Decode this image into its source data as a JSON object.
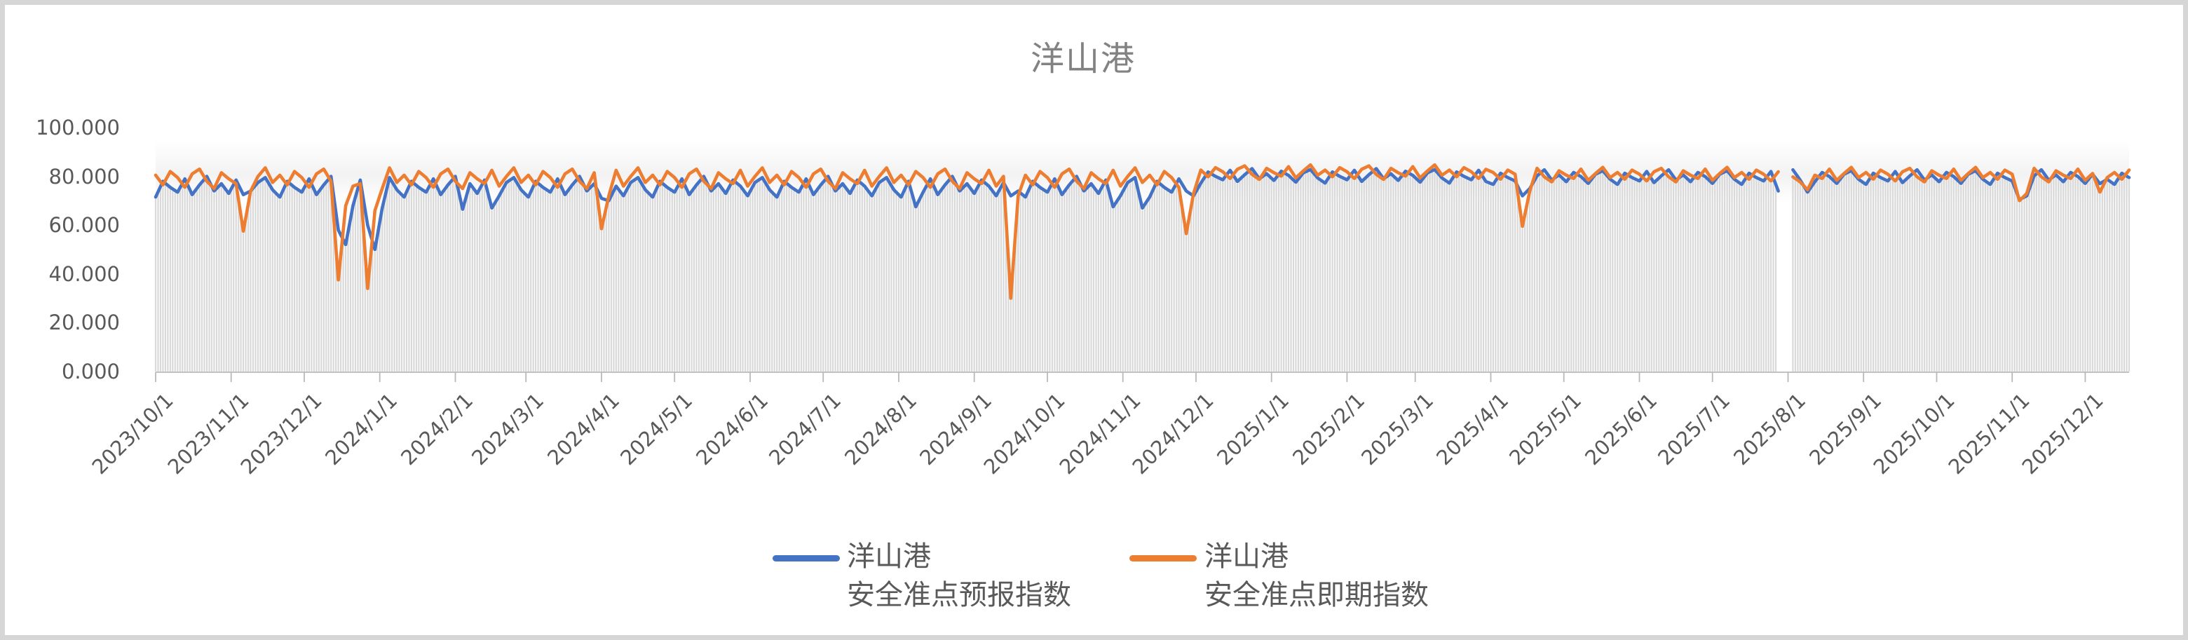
{
  "title": {
    "text": "洋山港",
    "color": "#828282"
  },
  "colors": {
    "series_forecast_blue": "#4472C4",
    "series_spot_orange": "#ED7D31",
    "background_bars_gray": "#d9d9d9",
    "axis_gray": "#b9b9b9",
    "label_gray": "#595959",
    "frame_gray": "#d6d6d6"
  },
  "y_axis": {
    "tick_labels": [
      "100.000",
      "80.000",
      "60.000",
      "40.000",
      "20.000",
      "0.000"
    ],
    "tick_values": [
      100,
      80,
      60,
      40,
      20,
      0
    ]
  },
  "legend": {
    "items": [
      {
        "line1": "洋山港",
        "line2": "安全准点预报指数",
        "color": "#4472C4"
      },
      {
        "line1": "洋山港",
        "line2": "安全准点即期指数",
        "color": "#ED7D31"
      }
    ]
  },
  "chart_data": {
    "type": "line",
    "title": "洋山港",
    "xlabel": "",
    "ylabel": "",
    "ylim": [
      0,
      100
    ],
    "y_ticks": [
      0,
      20,
      40,
      60,
      80,
      100
    ],
    "grid": "off",
    "legend_position": "bottom",
    "x_start": "2023/10/1",
    "x_end": "2025/12/19",
    "x_step_days": 3,
    "total_days": 810,
    "data_gap_at": "2025/8/1",
    "background_bars_color": "#d9d9d9",
    "x_tick_labels": [
      "2023/10/1",
      "2023/11/1",
      "2023/12/1",
      "2024/1/1",
      "2024/2/1",
      "2024/3/1",
      "2024/4/1",
      "2024/5/1",
      "2024/6/1",
      "2024/7/1",
      "2024/8/1",
      "2024/9/1",
      "2024/10/1",
      "2024/11/1",
      "2024/12/1",
      "2025/1/1",
      "2025/2/1",
      "2025/3/1",
      "2025/4/1",
      "2025/5/1",
      "2025/6/1",
      "2025/7/1",
      "2025/8/1",
      "2025/9/1",
      "2025/10/1",
      "2025/11/1",
      "2025/12/1"
    ],
    "x_tick_day_offsets": [
      0,
      31,
      61,
      92,
      123,
      152,
      183,
      213,
      244,
      274,
      305,
      336,
      366,
      397,
      427,
      458,
      489,
      517,
      548,
      578,
      609,
      639,
      670,
      701,
      731,
      762,
      792
    ],
    "notable_events": [
      {
        "date": "2023/11/6",
        "series": "即期",
        "value": 57.5
      },
      {
        "date": "2023/12/15",
        "series": "即期",
        "value": 37.5
      },
      {
        "date": "2023/12/28",
        "series": "即期",
        "value": 34
      },
      {
        "date": "2024/4/1",
        "series": "即期",
        "value": 58.5
      },
      {
        "date": "2024/9/16",
        "series": "即期",
        "value": 30
      },
      {
        "date": "2024/11/27",
        "series": "即期",
        "value": 56.5
      },
      {
        "date": "2025/4/14",
        "series": "即期",
        "value": 59.5
      },
      {
        "date": "2025/11/4",
        "series": "both",
        "value": 70
      }
    ],
    "series": [
      {
        "name": "洋山港安全准点预报指数",
        "color": "#4472C4",
        "values": [
          71.5,
          78,
          75.5,
          73.5,
          79,
          72.5,
          76.5,
          80,
          74,
          77,
          73,
          78.5,
          72.5,
          74,
          77.5,
          79.5,
          74.5,
          71.5,
          78,
          75.5,
          73.5,
          79,
          72.5,
          76.5,
          80,
          58,
          52,
          68,
          78.5,
          60,
          50,
          67,
          79.5,
          74.5,
          71.5,
          78,
          75.5,
          73.5,
          79,
          72.5,
          76.5,
          80,
          66.5,
          77,
          73,
          78.5,
          67,
          72,
          77.5,
          79.5,
          74.5,
          71.5,
          78,
          75.5,
          73.5,
          79,
          72.5,
          76.5,
          80,
          74,
          77,
          71,
          70,
          76,
          72,
          77.5,
          79.5,
          74.5,
          71.5,
          78,
          75.5,
          73.5,
          79,
          72.5,
          76.5,
          80,
          74,
          77,
          73,
          78.5,
          76,
          72,
          77.5,
          79.5,
          74.5,
          71.5,
          78,
          75.5,
          73.5,
          79,
          72.5,
          76.5,
          80,
          74,
          77,
          73,
          78.5,
          76,
          72,
          77.5,
          79.5,
          74.5,
          71.5,
          78,
          67.5,
          73.5,
          79,
          72.5,
          76.5,
          80,
          74,
          77,
          73,
          78.5,
          76,
          72,
          77.5,
          72,
          74,
          71.5,
          78,
          75.5,
          73.5,
          79,
          72.5,
          76.5,
          80,
          74,
          77,
          73,
          78.5,
          67.5,
          72,
          77.5,
          79.5,
          67,
          71.5,
          78,
          75.5,
          73.5,
          79,
          74,
          72,
          77.2,
          81.8,
          80,
          78.6,
          82.5,
          77.9,
          80.7,
          83.2,
          79,
          81.1,
          78.3,
          82.1,
          80.4,
          77.6,
          81.4,
          82.8,
          79.3,
          77.2,
          81.8,
          80,
          78.6,
          82.5,
          77.9,
          80.7,
          83.2,
          79,
          81.1,
          78.3,
          82.1,
          80.4,
          77.6,
          81.4,
          82.8,
          79.3,
          77.2,
          81.8,
          80,
          78.6,
          82.5,
          77.9,
          76.7,
          81.3,
          79.5,
          78.1,
          72,
          75,
          80.2,
          82.7,
          78.5,
          80.6,
          77.8,
          81.6,
          79.9,
          77.1,
          80.9,
          82.3,
          78.8,
          76.7,
          81.3,
          79.5,
          78.1,
          82,
          77.4,
          80.2,
          82.7,
          78.5,
          80.6,
          77.8,
          81.6,
          79.9,
          77.1,
          80.9,
          82.3,
          78.8,
          76.7,
          81.3,
          79.5,
          78.1,
          82,
          74,
          null,
          82.7,
          78.5,
          73.5,
          77.8,
          81.6,
          79.9,
          77.1,
          80.9,
          82.3,
          78.8,
          76.7,
          81.3,
          79.5,
          78.1,
          82,
          77.4,
          80.2,
          82.7,
          78.5,
          80.6,
          77.8,
          81.6,
          79.9,
          77.1,
          80.9,
          82.3,
          78.8,
          76.7,
          81.3,
          79.5,
          78.1,
          70.5,
          72,
          80.2,
          82.7,
          78.5,
          80.6,
          77.8,
          81.6,
          79.9,
          77.1,
          80.9,
          77,
          78.8,
          76.7,
          81.3,
          79.5
        ]
      },
      {
        "name": "洋山港安全准点即期指数",
        "color": "#ED7D31",
        "values": [
          80.5,
          76.5,
          82,
          79.5,
          75.5,
          81,
          83,
          78,
          75,
          81.5,
          79,
          77,
          57.5,
          74,
          80,
          83.5,
          77.5,
          80.5,
          76.5,
          82,
          79.5,
          75.5,
          81,
          83,
          78,
          37.5,
          68,
          76,
          77,
          34,
          66,
          75,
          83.5,
          77.5,
          80.5,
          76.5,
          82,
          79.5,
          75.5,
          81,
          83,
          78,
          75,
          81.5,
          79,
          77,
          82.5,
          76,
          80,
          83.5,
          77.5,
          80.5,
          76.5,
          82,
          79.5,
          75.5,
          81,
          83,
          78,
          75,
          81.5,
          58.5,
          72,
          82.5,
          76,
          80,
          83.5,
          77.5,
          80.5,
          76.5,
          82,
          79.5,
          75.5,
          81,
          83,
          78,
          75,
          81.5,
          79,
          77,
          82.5,
          76,
          80,
          83.5,
          77.5,
          80.5,
          76.5,
          82,
          79.5,
          75.5,
          81,
          83,
          78,
          75,
          81.5,
          79,
          77,
          82.5,
          76,
          80,
          83.5,
          77.5,
          80.5,
          76.5,
          82,
          79.5,
          75.5,
          81,
          83,
          78,
          75,
          81.5,
          79,
          77,
          82.5,
          76,
          80,
          30,
          72,
          80.5,
          76.5,
          82,
          79.5,
          75.5,
          81,
          83,
          78,
          75,
          81.5,
          79,
          77,
          82.5,
          76,
          80,
          83.5,
          77.5,
          80.5,
          76.5,
          82,
          79.5,
          75.5,
          56.5,
          73,
          82.6,
          79.8,
          83.6,
          81.9,
          79.1,
          82.9,
          84.3,
          80.8,
          78.7,
          83.3,
          81.5,
          80.1,
          84,
          79.4,
          82.2,
          84.7,
          80.5,
          82.6,
          79.8,
          83.6,
          81.9,
          79.1,
          82.9,
          84.3,
          80.8,
          78.7,
          83.3,
          81.5,
          80.1,
          84,
          79.4,
          82.2,
          84.7,
          80.5,
          82.6,
          79.8,
          83.6,
          81.9,
          79.1,
          82.9,
          81.6,
          78.8,
          82.6,
          80.9,
          59.5,
          74,
          83.3,
          79.8,
          77.7,
          82.3,
          80.5,
          79.1,
          83,
          78.4,
          81.2,
          83.7,
          79.5,
          81.6,
          78.8,
          82.6,
          80.9,
          78.1,
          81.9,
          83.3,
          79.8,
          77.7,
          82.3,
          80.5,
          79.1,
          83,
          78.4,
          81.2,
          83.7,
          79.5,
          81.6,
          78.8,
          82.6,
          80.9,
          78.1,
          81.9,
          null,
          79.8,
          77.7,
          74.5,
          80.5,
          79.1,
          83,
          78.4,
          81.2,
          83.7,
          79.5,
          81.6,
          78.8,
          82.6,
          80.9,
          78.1,
          81.9,
          83.3,
          79.8,
          77.7,
          82.3,
          80.5,
          79.1,
          83,
          78.4,
          81.2,
          83.7,
          79.5,
          81.6,
          78.8,
          82.6,
          80.9,
          70,
          73,
          83.3,
          79.8,
          77.7,
          82.3,
          80.5,
          79.1,
          83,
          78.4,
          81.2,
          73.5,
          79.5,
          81.6,
          78.8,
          82.6
        ]
      }
    ]
  }
}
